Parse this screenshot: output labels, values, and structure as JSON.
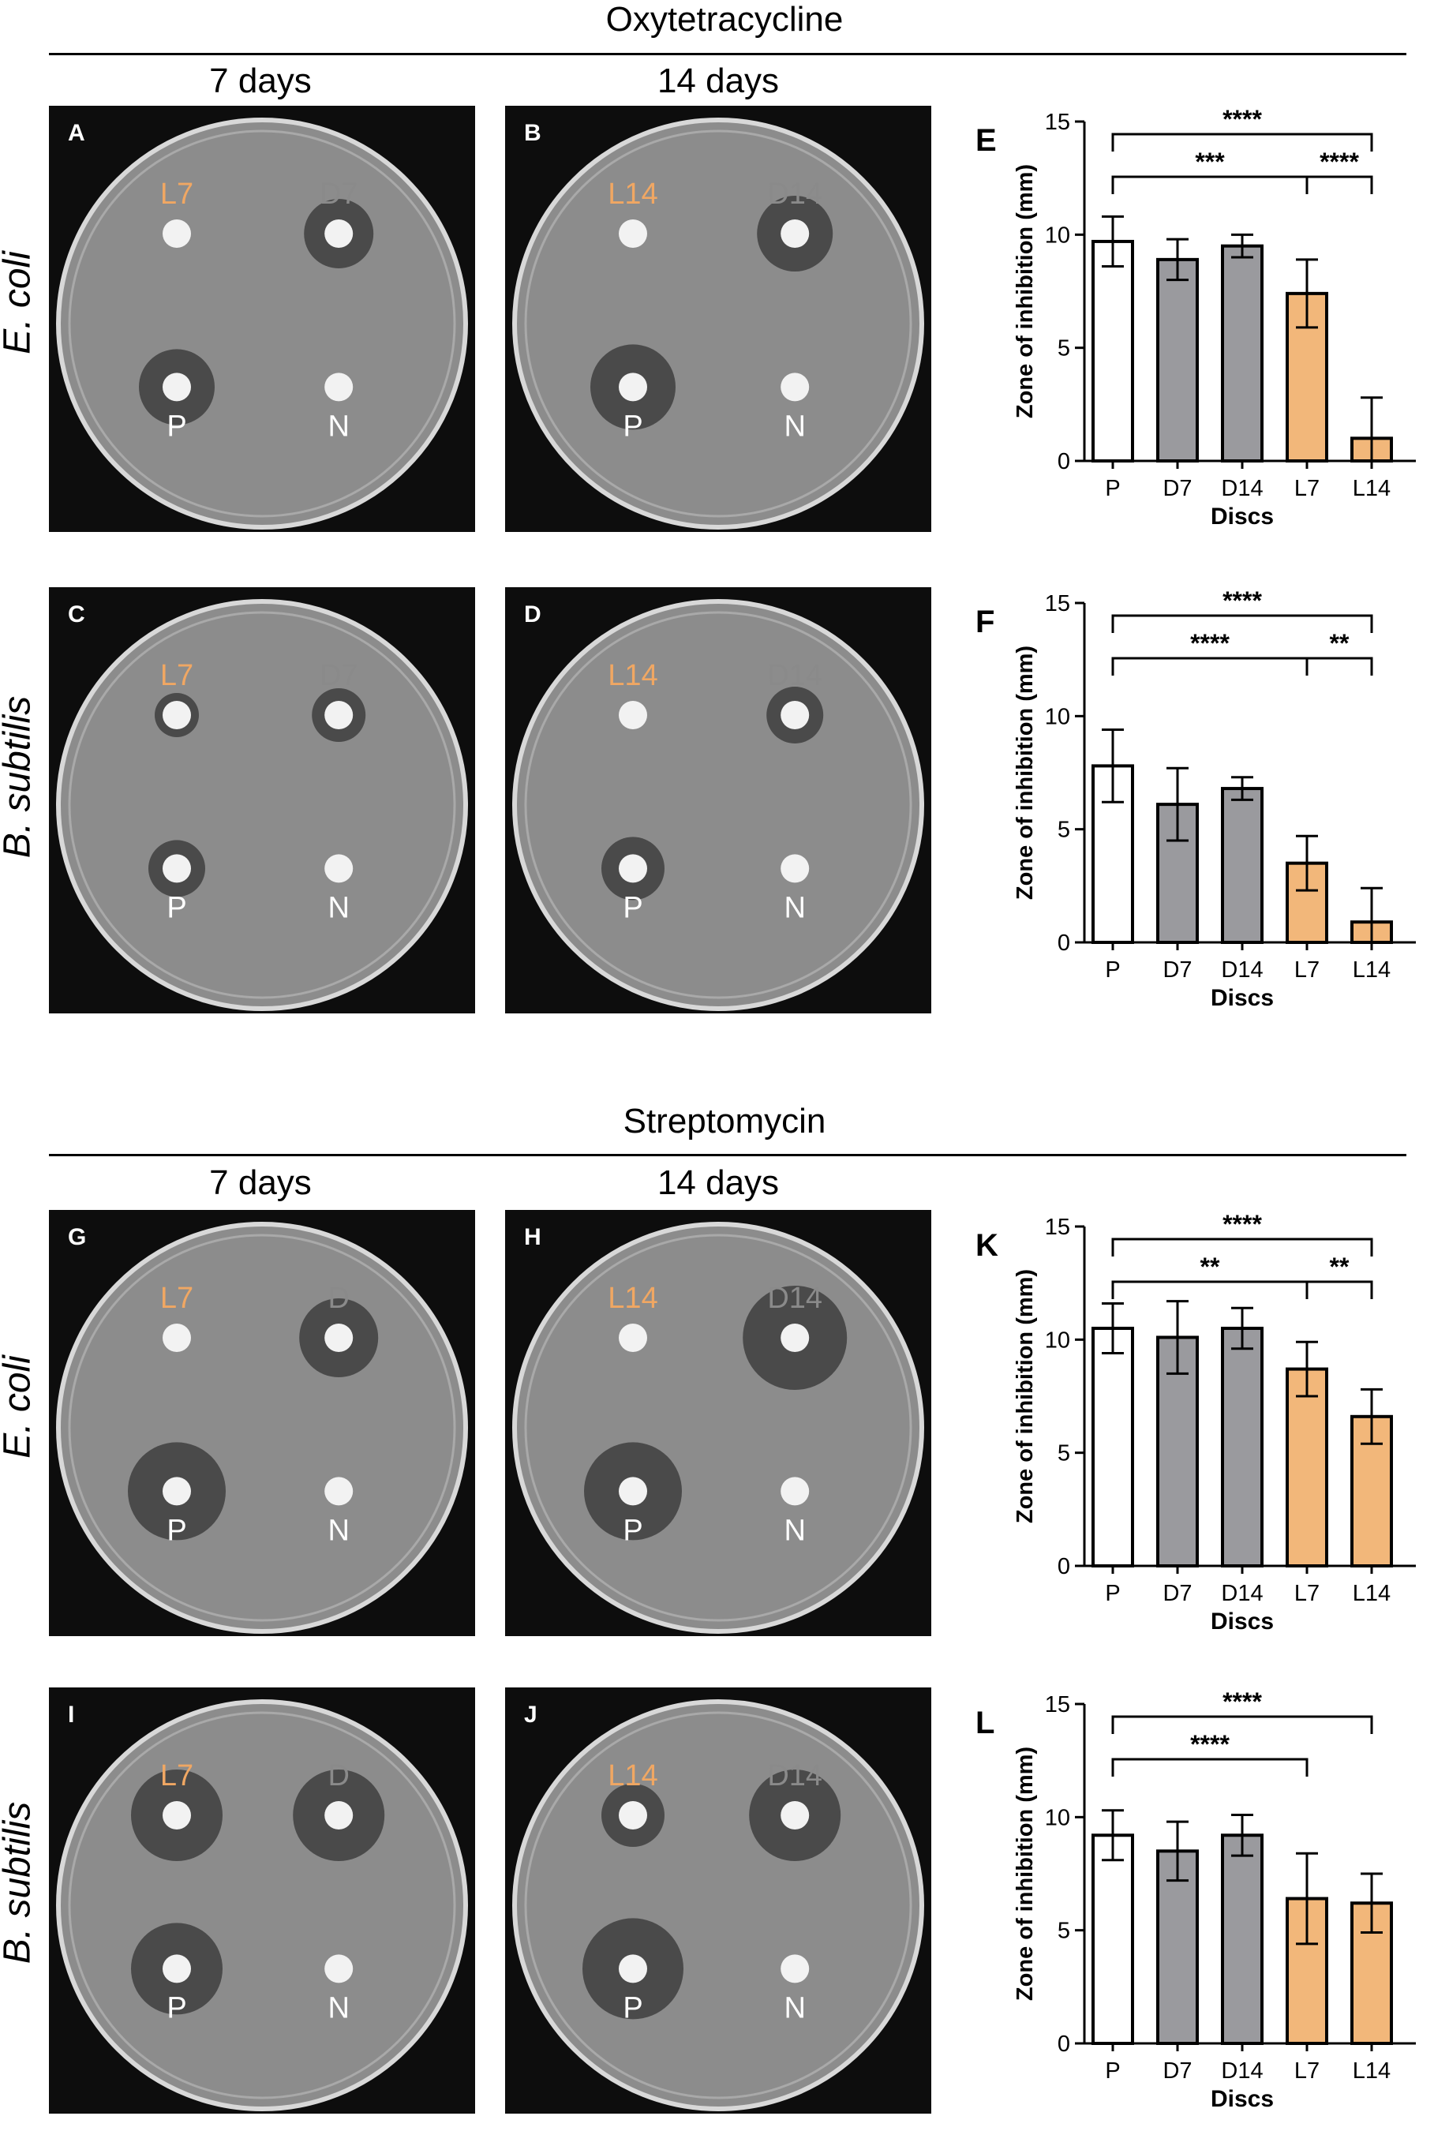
{
  "sections": [
    {
      "title": "Oxytetracycline",
      "col1": "7 days",
      "col2": "14 days",
      "row1": "E. coli",
      "row2": "B. subtilis"
    },
    {
      "title": "Streptomycin",
      "col1": "7 days",
      "col2": "14 days",
      "row1": "E. coli",
      "row2": "B. subtilis"
    }
  ],
  "plates": [
    {
      "letter": "A",
      "tl": "L7",
      "tr": "D7",
      "bl": "P",
      "br": "N"
    },
    {
      "letter": "B",
      "tl": "L14",
      "tr": "D14",
      "bl": "P",
      "br": "N"
    },
    {
      "letter": "C",
      "tl": "L7",
      "tr": "D7",
      "bl": "P",
      "br": "N"
    },
    {
      "letter": "D",
      "tl": "L14",
      "tr": "D14",
      "bl": "P",
      "br": "N"
    },
    {
      "letter": "G",
      "tl": "L7",
      "tr": "D",
      "bl": "P",
      "br": "N"
    },
    {
      "letter": "H",
      "tl": "L14",
      "tr": "D14",
      "bl": "P",
      "br": "N"
    },
    {
      "letter": "I",
      "tl": "L7",
      "tr": "D",
      "bl": "P",
      "br": "N"
    },
    {
      "letter": "J",
      "tl": "L14",
      "tr": "D14",
      "bl": "P",
      "br": "N"
    }
  ],
  "colors": {
    "orange_label": "#f0a763",
    "gray_label": "#8a8a8a",
    "bar_white": "#ffffff",
    "bar_gray": "#9a9a9e",
    "bar_orange": "#f2b77a"
  },
  "chart_data": [
    {
      "letter": "E",
      "type": "bar",
      "categories": [
        "P",
        "D7",
        "D14",
        "L7",
        "L14"
      ],
      "values": [
        9.7,
        8.9,
        9.5,
        7.4,
        1.0
      ],
      "errors": [
        1.1,
        0.9,
        0.5,
        1.5,
        1.8
      ],
      "fills": [
        "white",
        "gray",
        "gray",
        "orange",
        "orange"
      ],
      "xlabel": "Discs",
      "ylabel": "Zone of inhibition (mm)",
      "ylim": [
        0,
        15
      ],
      "yticks": [
        0,
        5,
        10,
        15
      ],
      "brackets": [
        {
          "from": 0,
          "to": 4,
          "label": "****",
          "level": 1
        },
        {
          "from": 0,
          "to": 3,
          "label": "***",
          "level": 0
        },
        {
          "from": 3,
          "to": 4,
          "label": "****",
          "level": 0
        }
      ]
    },
    {
      "letter": "F",
      "type": "bar",
      "categories": [
        "P",
        "D7",
        "D14",
        "L7",
        "L14"
      ],
      "values": [
        7.8,
        6.1,
        6.8,
        3.5,
        0.9
      ],
      "errors": [
        1.6,
        1.6,
        0.5,
        1.2,
        1.5
      ],
      "fills": [
        "white",
        "gray",
        "gray",
        "orange",
        "orange"
      ],
      "xlabel": "Discs",
      "ylabel": "Zone of inhibition (mm)",
      "ylim": [
        0,
        15
      ],
      "yticks": [
        0,
        5,
        10,
        15
      ],
      "brackets": [
        {
          "from": 0,
          "to": 4,
          "label": "****",
          "level": 1
        },
        {
          "from": 0,
          "to": 3,
          "label": "****",
          "level": 0
        },
        {
          "from": 3,
          "to": 4,
          "label": "**",
          "level": 0
        }
      ]
    },
    {
      "letter": "K",
      "type": "bar",
      "categories": [
        "P",
        "D7",
        "D14",
        "L7",
        "L14"
      ],
      "values": [
        10.5,
        10.1,
        10.5,
        8.7,
        6.6
      ],
      "errors": [
        1.1,
        1.6,
        0.9,
        1.2,
        1.2
      ],
      "fills": [
        "white",
        "gray",
        "gray",
        "orange",
        "orange"
      ],
      "xlabel": "Discs",
      "ylabel": "Zone of inhibition (mm)",
      "ylim": [
        0,
        15
      ],
      "yticks": [
        0,
        5,
        10,
        15
      ],
      "brackets": [
        {
          "from": 0,
          "to": 4,
          "label": "****",
          "level": 1
        },
        {
          "from": 0,
          "to": 3,
          "label": "**",
          "level": 0
        },
        {
          "from": 3,
          "to": 4,
          "label": "**",
          "level": 0
        }
      ]
    },
    {
      "letter": "L",
      "type": "bar",
      "categories": [
        "P",
        "D7",
        "D14",
        "L7",
        "L14"
      ],
      "values": [
        9.2,
        8.5,
        9.2,
        6.4,
        6.2
      ],
      "errors": [
        1.1,
        1.3,
        0.9,
        2.0,
        1.3
      ],
      "fills": [
        "white",
        "gray",
        "gray",
        "orange",
        "orange"
      ],
      "xlabel": "Discs",
      "ylabel": "Zone of inhibition (mm)",
      "ylim": [
        0,
        15
      ],
      "yticks": [
        0,
        5,
        10,
        15
      ],
      "brackets": [
        {
          "from": 0,
          "to": 4,
          "label": "****",
          "level": 1
        },
        {
          "from": 0,
          "to": 3,
          "label": "****",
          "level": 0
        }
      ]
    }
  ]
}
